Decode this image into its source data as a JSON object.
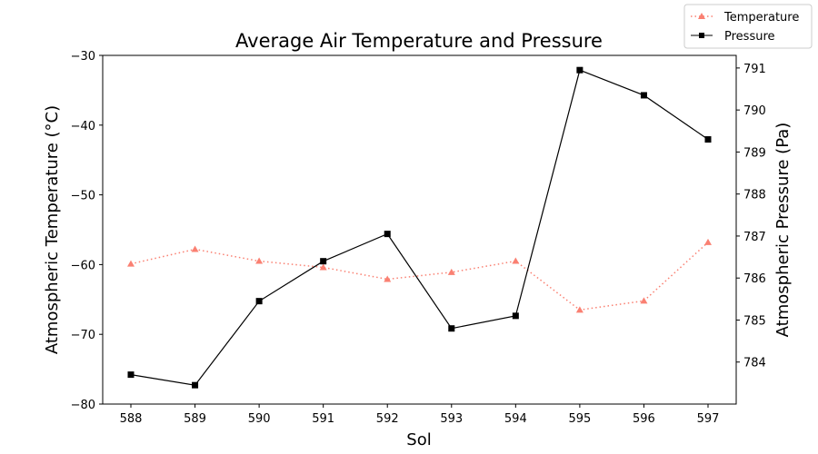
{
  "chart_data": {
    "type": "line",
    "title": "Average Air Temperature and Pressure",
    "xlabel": "Sol",
    "ylabel_left": "Atmospheric Temperature (°C)",
    "ylabel_right": "Atmospheric Pressure (Pa)",
    "x": [
      588,
      589,
      590,
      591,
      592,
      593,
      594,
      595,
      596,
      597
    ],
    "x_ticks": [
      "588",
      "589",
      "590",
      "591",
      "592",
      "593",
      "594",
      "595",
      "596",
      "597"
    ],
    "ylim_left": [
      -80,
      -30
    ],
    "y_ticks_left": [
      "−80",
      "−70",
      "−60",
      "−50",
      "−40",
      "−30"
    ],
    "y_tick_values_left": [
      -80,
      -70,
      -60,
      -50,
      -40,
      -30
    ],
    "ylim_right": [
      783,
      791.3
    ],
    "y_ticks_right": [
      "784",
      "785",
      "786",
      "787",
      "788",
      "789",
      "790",
      "791"
    ],
    "y_tick_values_right": [
      784,
      785,
      786,
      787,
      788,
      789,
      790,
      791
    ],
    "legend_position": "top-right",
    "series": [
      {
        "name": "Temperature",
        "axis": "left",
        "color": "#fa8072",
        "line_style": "dotted",
        "marker": "triangle",
        "values": [
          -59.9,
          -57.8,
          -59.5,
          -60.4,
          -62.1,
          -61.1,
          -59.5,
          -66.5,
          -65.2,
          -56.8
        ]
      },
      {
        "name": "Pressure",
        "axis": "right",
        "color": "#000000",
        "line_style": "solid",
        "marker": "square",
        "values": [
          783.7,
          783.45,
          785.45,
          786.4,
          787.05,
          784.8,
          785.1,
          790.95,
          790.35,
          789.3
        ]
      }
    ]
  }
}
